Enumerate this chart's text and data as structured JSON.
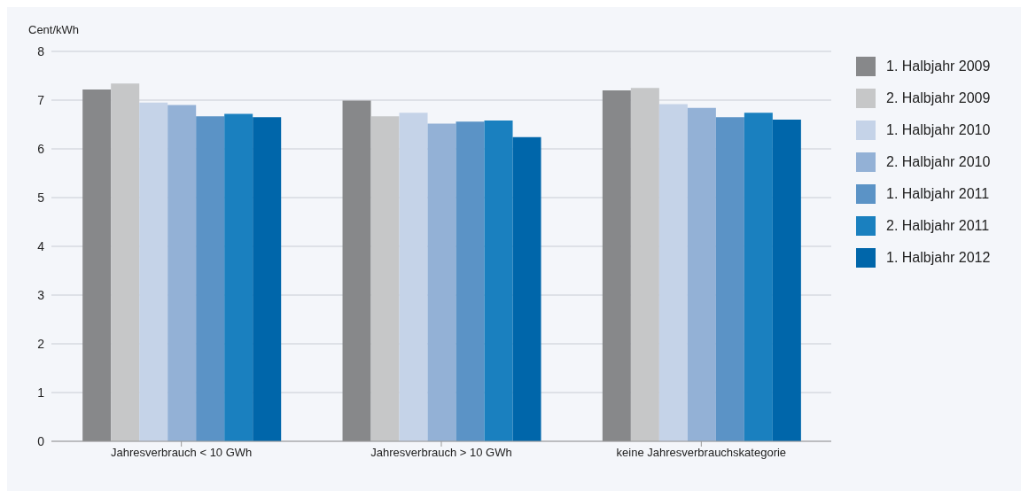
{
  "chart_data": {
    "type": "bar",
    "ylabel": "Cent/kWh",
    "categories": [
      "Jahresverbrauch < 10 GWh",
      "Jahresverbrauch > 10 GWh",
      "keine Jahresverbrauchskategorie"
    ],
    "series": [
      {
        "name": "1. Halbjahr 2009",
        "color": "#87888a",
        "values": [
          7.22,
          6.99,
          7.2
        ]
      },
      {
        "name": "2. Halbjahr 2009",
        "color": "#c6c7c8",
        "values": [
          7.34,
          6.67,
          7.25
        ]
      },
      {
        "name": "1. Halbjahr 2010",
        "color": "#c5d3e8",
        "values": [
          6.95,
          6.74,
          6.92
        ]
      },
      {
        "name": "2. Halbjahr 2010",
        "color": "#93b1d6",
        "values": [
          6.9,
          6.52,
          6.84
        ]
      },
      {
        "name": "1. Halbjahr 2011",
        "color": "#5b93c6",
        "values": [
          6.67,
          6.56,
          6.65
        ]
      },
      {
        "name": "2. Halbjahr 2011",
        "color": "#1a80bf",
        "values": [
          6.72,
          6.58,
          6.74
        ]
      },
      {
        "name": "1. Halbjahr 2012",
        "color": "#0066aa",
        "values": [
          6.65,
          6.24,
          6.6
        ]
      }
    ],
    "ylim": [
      0,
      8
    ],
    "yticks": [
      0,
      1,
      2,
      3,
      4,
      5,
      6,
      7,
      8
    ],
    "grid": "y",
    "legend": "right"
  }
}
